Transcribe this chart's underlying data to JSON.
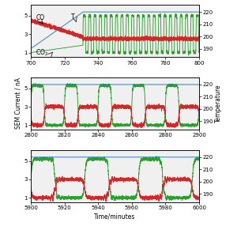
{
  "panel1": {
    "xmin": 700,
    "xmax": 800,
    "xticks": [
      700,
      720,
      740,
      760,
      780,
      800
    ],
    "yticks_left": [
      1,
      3,
      5
    ],
    "yticks_right": [
      190,
      200,
      210,
      220
    ],
    "bg": "#f0f0f0"
  },
  "panel2": {
    "xmin": 2800,
    "xmax": 2900,
    "xticks": [
      2800,
      2820,
      2840,
      2860,
      2880,
      2900
    ],
    "yticks_left": [
      1,
      3,
      5
    ],
    "yticks_right": [
      190,
      200,
      210,
      220
    ],
    "bg": "#f0f0f0"
  },
  "panel3": {
    "xmin": 5900,
    "xmax": 6000,
    "xticks": [
      5900,
      5920,
      5940,
      5960,
      5980,
      6000
    ],
    "yticks_left": [
      1,
      3,
      5
    ],
    "yticks_right": [
      190,
      200,
      210,
      220
    ],
    "bg": "#f0f0f0"
  },
  "colors": {
    "green": "#2ca02c",
    "red": "#d62728",
    "blue": "#1f77b4"
  },
  "ylim_left": [
    0.5,
    6.2
  ],
  "ylim_right": [
    183,
    226
  ],
  "ylabel_left": "SEM Current / nA",
  "ylabel_right": "Temperature",
  "xlabel": "Time/minutes"
}
